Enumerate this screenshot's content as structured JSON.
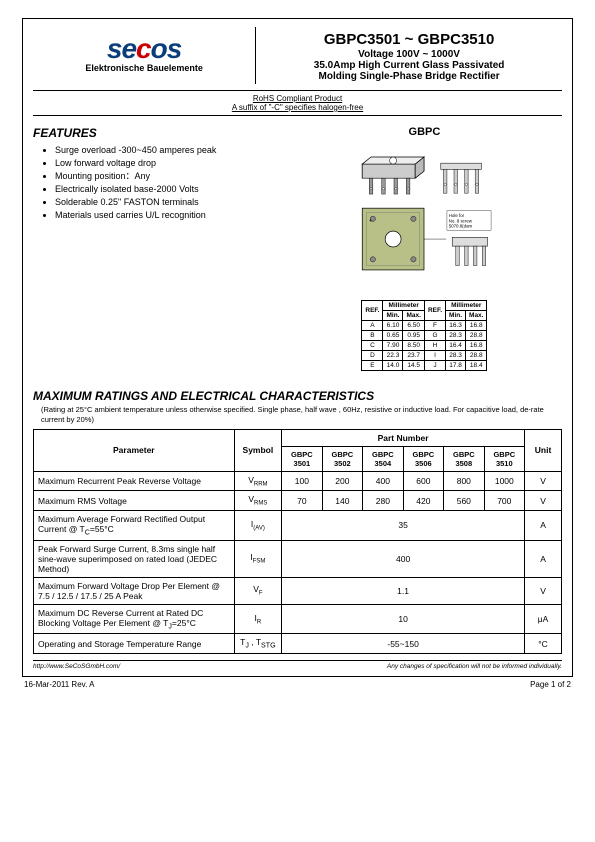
{
  "header": {
    "logo_text": "secos",
    "logo_sub": "Elektronische Bauelemente",
    "title": "GBPC3501 ~ GBPC3510",
    "voltage": "Voltage 100V ~ 1000V",
    "desc1": "35.0Amp High Current Glass Passivated",
    "desc2": "Molding Single-Phase Bridge Rectifier"
  },
  "rohs": {
    "line1": "RoHS Compliant Product",
    "line2": "A suffix of \"-C\" specifies halogen-free"
  },
  "features": {
    "title": "FEATURES",
    "items": [
      "Surge overload -300~450 amperes peak",
      "Low forward voltage drop",
      "Mounting position：Any",
      "Electrically isolated base-2000 Volts",
      "Solderable 0.25\" FASTON terminals",
      "Materials used carries U/L recognition"
    ]
  },
  "package": {
    "label": "GBPC",
    "hole_note1": "Hole for",
    "hole_note2": "No. 8 screw",
    "hole_note3": "5070.8(dam"
  },
  "dim_table": {
    "header_ref": "REF.",
    "header_mm": "Millimeter",
    "header_min": "Min.",
    "header_max": "Max.",
    "rows_left": [
      {
        "r": "A",
        "min": "6.10",
        "max": "6.50"
      },
      {
        "r": "B",
        "min": "0.65",
        "max": "0.95"
      },
      {
        "r": "C",
        "min": "7.90",
        "max": "8.50"
      },
      {
        "r": "D",
        "min": "22.3",
        "max": "23.7"
      },
      {
        "r": "E",
        "min": "14.0",
        "max": "14.5"
      }
    ],
    "rows_right": [
      {
        "r": "F",
        "min": "16.3",
        "max": "16.8"
      },
      {
        "r": "G",
        "min": "28.3",
        "max": "28.8"
      },
      {
        "r": "H",
        "min": "16.4",
        "max": "16.8"
      },
      {
        "r": "I",
        "min": "28.3",
        "max": "28.8"
      },
      {
        "r": "J",
        "min": "17.8",
        "max": "18.4"
      }
    ]
  },
  "ratings": {
    "title": "MAXIMUM RATINGS AND ELECTRICAL CHARACTERISTICS",
    "note": "(Rating at 25°C ambient temperature unless otherwise specified. Single phase, half wave , 60Hz, resistive or inductive load. For capacitive load, de-rate current by 20%)",
    "col_param": "Parameter",
    "col_symbol": "Symbol",
    "col_partno": "Part Number",
    "col_unit": "Unit",
    "parts": [
      "GBPC 3501",
      "GBPC 3502",
      "GBPC 3504",
      "GBPC 3506",
      "GBPC 3508",
      "GBPC 3510"
    ],
    "rows": [
      {
        "param": "Maximum Recurrent Peak Reverse Voltage",
        "sym": "V",
        "sub": "RRM",
        "vals": [
          "100",
          "200",
          "400",
          "600",
          "800",
          "1000"
        ],
        "unit": "V",
        "span": false
      },
      {
        "param": "Maximum RMS Voltage",
        "sym": "V",
        "sub": "RMS",
        "vals": [
          "70",
          "140",
          "280",
          "420",
          "560",
          "700"
        ],
        "unit": "V",
        "span": false
      },
      {
        "param": "Maximum Average Forward Rectified Output Current @ T_C=55°C",
        "sym": "I",
        "sub": "(AV)",
        "vals": [
          "35"
        ],
        "unit": "A",
        "span": true
      },
      {
        "param": "Peak Forward Surge Current, 8.3ms single half sine-wave superimposed on rated load (JEDEC Method)",
        "sym": "I",
        "sub": "FSM",
        "vals": [
          "400"
        ],
        "unit": "A",
        "span": true
      },
      {
        "param": "Maximum Forward Voltage Drop Per Element @ 7.5 / 12.5 / 17.5 / 25 A Peak",
        "sym": "V",
        "sub": "F",
        "vals": [
          "1.1"
        ],
        "unit": "V",
        "span": true
      },
      {
        "param": "Maximum DC Reverse Current at Rated DC Blocking Voltage Per Element @ T_J=25°C",
        "sym": "I",
        "sub": "R",
        "vals": [
          "10"
        ],
        "unit": "μA",
        "span": true
      },
      {
        "param": "Operating and Storage Temperature Range",
        "sym": "T_J , T_STG",
        "sub": "",
        "vals": [
          "-55~150"
        ],
        "unit": "°C",
        "span": true
      }
    ]
  },
  "footer": {
    "url": "http://www.SeCoSGmbH.com/",
    "disclaimer": "Any changes of specification will not be informed individually.",
    "date": "16-Mar-2011 Rev. A",
    "page": "Page  1 of  2"
  }
}
